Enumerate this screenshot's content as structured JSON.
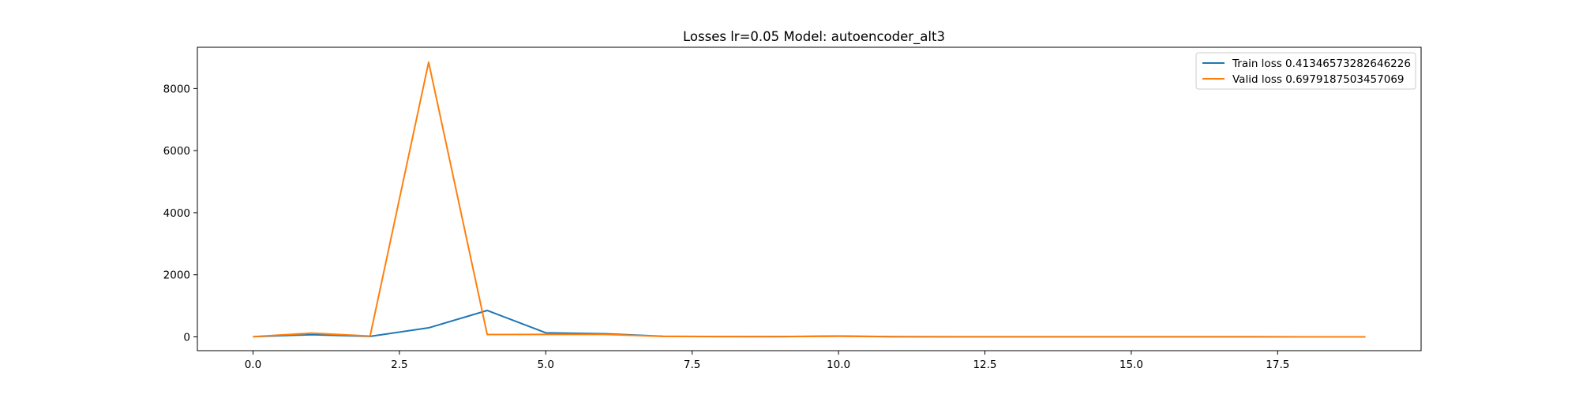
{
  "chart_data": {
    "type": "line",
    "title": "Losses lr=0.05 Model: autoencoder_alt3",
    "xlabel": "",
    "ylabel": "",
    "xlim": [
      -0.95,
      19.95
    ],
    "ylim": [
      -445,
      9330
    ],
    "xticks": [
      0.0,
      2.5,
      5.0,
      7.5,
      10.0,
      12.5,
      15.0,
      17.5
    ],
    "xtick_labels": [
      "0.0",
      "2.5",
      "5.0",
      "7.5",
      "10.0",
      "12.5",
      "15.0",
      "17.5"
    ],
    "yticks": [
      0,
      2000,
      4000,
      6000,
      8000
    ],
    "ytick_labels": [
      "0",
      "2000",
      "4000",
      "6000",
      "8000"
    ],
    "grid": false,
    "legend_position": "top-right",
    "x": [
      0,
      1,
      2,
      3,
      4,
      5,
      6,
      7,
      8,
      9,
      10,
      11,
      12,
      13,
      14,
      15,
      16,
      17,
      18,
      19
    ],
    "series": [
      {
        "name": "Train loss 0.41346573282646226",
        "color": "#1f77b4",
        "values": [
          5,
          70,
          15,
          290,
          850,
          130,
          100,
          20,
          10,
          8,
          25,
          5,
          4,
          3,
          2,
          2,
          1,
          1,
          0.5,
          0.4
        ]
      },
      {
        "name": "Valid loss 0.6979187503457069",
        "color": "#ff7f0e",
        "values": [
          5,
          120,
          25,
          8850,
          75,
          80,
          80,
          15,
          8,
          6,
          20,
          4,
          3,
          2,
          2,
          1.5,
          1,
          1,
          0.8,
          0.7
        ]
      }
    ]
  }
}
